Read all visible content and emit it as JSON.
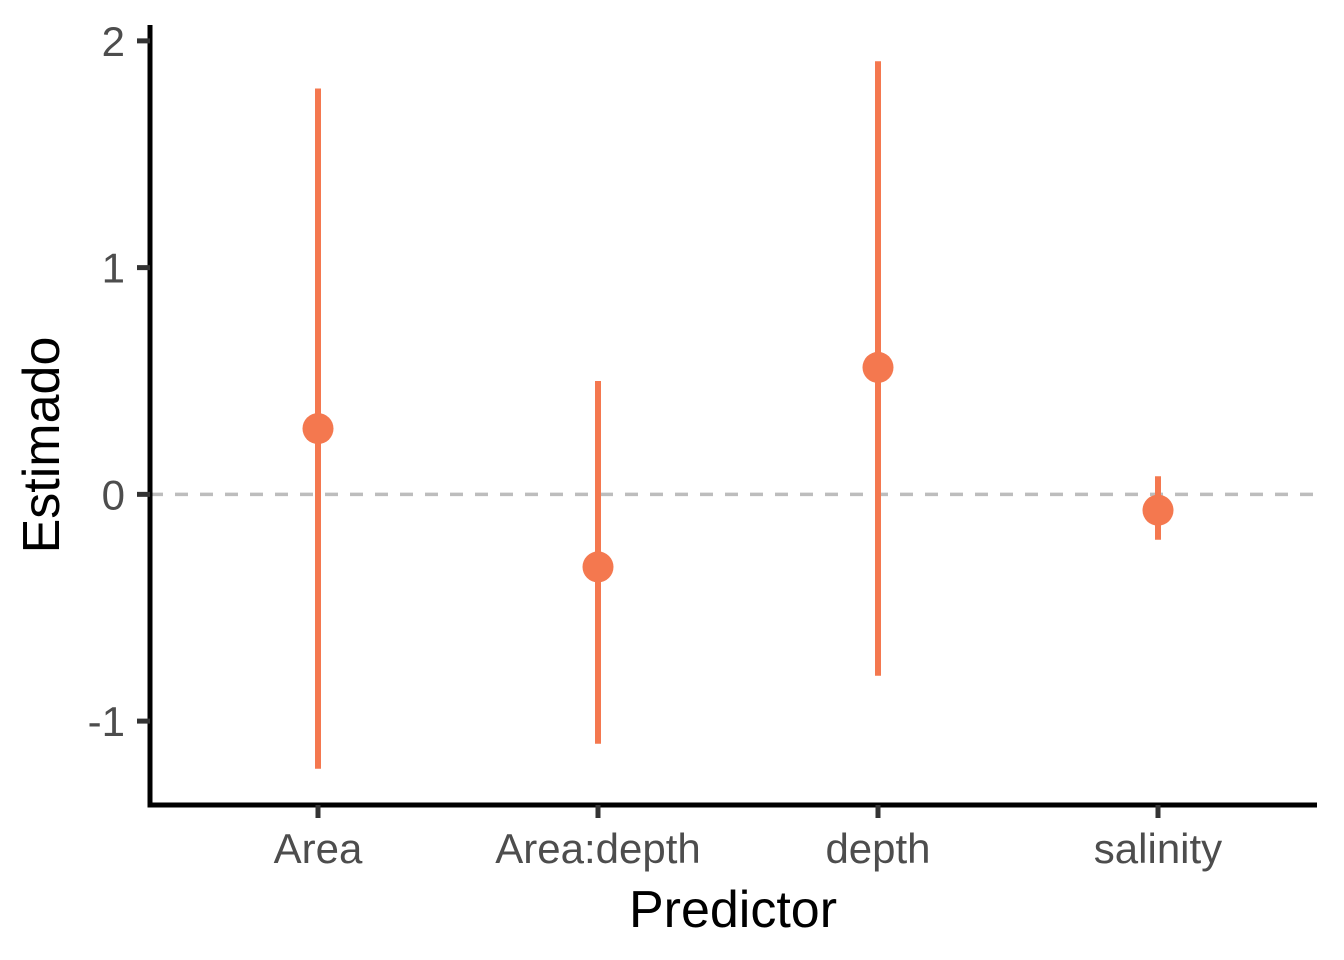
{
  "chart_data": {
    "type": "scatter",
    "subtype": "pointrange-coefficient-plot",
    "title": "",
    "xlabel": "Predictor",
    "ylabel": "Estimado",
    "categories": [
      "Area",
      "Area:depth",
      "depth",
      "salinity"
    ],
    "estimates": [
      0.29,
      -0.32,
      0.56,
      -0.07
    ],
    "ci_low": [
      -1.21,
      -1.1,
      -0.8,
      -0.2
    ],
    "ci_high": [
      1.79,
      0.5,
      1.91,
      0.08
    ],
    "yticks": [
      -1,
      0,
      1,
      2
    ],
    "ylim": [
      -1.37,
      2.07
    ],
    "reference_line": 0,
    "grid": false,
    "legend": "none",
    "colors": {
      "point": "#F4784F",
      "reference_line": "#BDBDBD",
      "axis": "#000000",
      "tick": "#333333",
      "tick_label": "#4D4D4D",
      "title": "#000000",
      "background": "#FFFFFF"
    }
  }
}
